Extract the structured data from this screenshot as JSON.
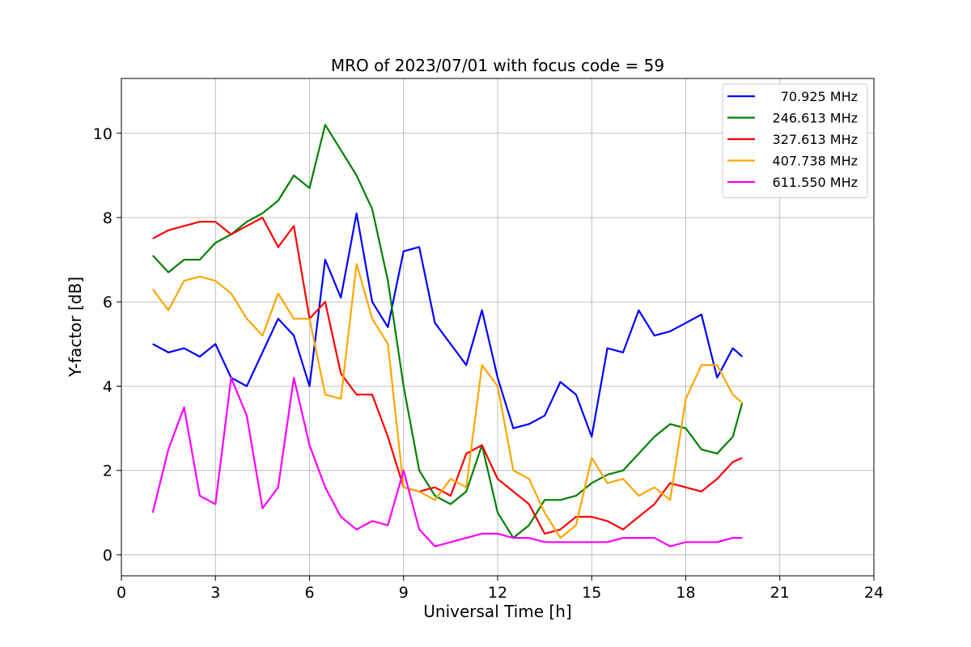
{
  "chart_data": {
    "type": "line",
    "title": "MRO of 2023/07/01 with focus code = 59",
    "xlabel": "Universal Time [h]",
    "ylabel": "Y-factor [dB]",
    "xlim": [
      0,
      24
    ],
    "ylim": [
      -0.5,
      11.3
    ],
    "xticks": [
      0,
      3,
      6,
      9,
      12,
      15,
      18,
      21,
      24
    ],
    "yticks": [
      0,
      2,
      4,
      6,
      8,
      10
    ],
    "grid": true,
    "legend_position": "top-right",
    "series": [
      {
        "name": "70.925 MHz",
        "color": "#0000ff",
        "x": [
          1.0,
          1.5,
          2.0,
          2.5,
          3.0,
          3.5,
          4.0,
          4.5,
          5.0,
          5.5,
          6.0,
          6.5,
          7.0,
          7.5,
          8.0,
          8.5,
          9.0,
          9.5,
          10.0,
          10.5,
          11.0,
          11.5,
          12.0,
          12.5,
          13.0,
          13.5,
          14.0,
          14.5,
          15.0,
          15.5,
          16.0,
          16.5,
          17.0,
          17.5,
          18.0,
          18.5,
          19.0,
          19.5,
          19.8
        ],
        "y": [
          5.0,
          4.8,
          4.9,
          4.7,
          5.0,
          4.2,
          4.0,
          4.8,
          5.6,
          5.2,
          4.0,
          7.0,
          6.1,
          8.1,
          6.0,
          5.4,
          7.2,
          7.3,
          5.5,
          5.0,
          4.5,
          5.8,
          4.2,
          3.0,
          3.1,
          3.3,
          4.1,
          3.8,
          2.8,
          4.9,
          4.8,
          5.8,
          5.2,
          5.3,
          5.5,
          5.7,
          4.2,
          4.9,
          4.7
        ]
      },
      {
        "name": "246.613 MHz",
        "color": "#008000",
        "x": [
          1.0,
          1.5,
          2.0,
          2.5,
          3.0,
          3.5,
          4.0,
          4.5,
          5.0,
          5.5,
          6.0,
          6.5,
          7.0,
          7.5,
          8.0,
          8.5,
          9.0,
          9.5,
          10.0,
          10.5,
          11.0,
          11.5,
          12.0,
          12.5,
          13.0,
          13.5,
          14.0,
          14.5,
          15.0,
          15.5,
          16.0,
          16.5,
          17.0,
          17.5,
          18.0,
          18.5,
          19.0,
          19.5,
          19.8
        ],
        "y": [
          7.1,
          6.7,
          7.0,
          7.0,
          7.4,
          7.6,
          7.9,
          8.1,
          8.4,
          9.0,
          8.7,
          10.2,
          9.6,
          9.0,
          8.2,
          6.5,
          4.0,
          2.0,
          1.4,
          1.2,
          1.5,
          2.6,
          1.0,
          0.4,
          0.7,
          1.3,
          1.3,
          1.4,
          1.7,
          1.9,
          2.0,
          2.4,
          2.8,
          3.1,
          3.0,
          2.5,
          2.4,
          2.8,
          3.6
        ]
      },
      {
        "name": "327.613 MHz",
        "color": "#ff0000",
        "x": [
          1.0,
          1.5,
          2.0,
          2.5,
          3.0,
          3.5,
          4.0,
          4.5,
          5.0,
          5.5,
          6.0,
          6.5,
          7.0,
          7.5,
          8.0,
          8.5,
          9.0,
          9.5,
          10.0,
          10.5,
          11.0,
          11.5,
          12.0,
          12.5,
          13.0,
          13.5,
          14.0,
          14.5,
          15.0,
          15.5,
          16.0,
          16.5,
          17.0,
          17.5,
          18.0,
          18.5,
          19.0,
          19.5,
          19.8
        ],
        "y": [
          7.5,
          7.7,
          7.8,
          7.9,
          7.9,
          7.6,
          7.8,
          8.0,
          7.3,
          7.8,
          5.6,
          6.0,
          4.3,
          3.8,
          3.8,
          2.8,
          1.6,
          1.5,
          1.6,
          1.4,
          2.4,
          2.6,
          1.8,
          1.5,
          1.2,
          0.5,
          0.6,
          0.9,
          0.9,
          0.8,
          0.6,
          0.9,
          1.2,
          1.7,
          1.6,
          1.5,
          1.8,
          2.2,
          2.3
        ]
      },
      {
        "name": "407.738 MHz",
        "color": "#ffa500",
        "x": [
          1.0,
          1.5,
          2.0,
          2.5,
          3.0,
          3.5,
          4.0,
          4.5,
          5.0,
          5.5,
          6.0,
          6.5,
          7.0,
          7.5,
          8.0,
          8.5,
          9.0,
          9.5,
          10.0,
          10.5,
          11.0,
          11.5,
          12.0,
          12.5,
          13.0,
          13.5,
          14.0,
          14.5,
          15.0,
          15.5,
          16.0,
          16.5,
          17.0,
          17.5,
          18.0,
          18.5,
          19.0,
          19.5,
          19.8
        ],
        "y": [
          6.3,
          5.8,
          6.5,
          6.6,
          6.5,
          6.2,
          5.6,
          5.2,
          6.2,
          5.6,
          5.6,
          3.8,
          3.7,
          6.9,
          5.6,
          5.0,
          1.6,
          1.5,
          1.3,
          1.8,
          1.6,
          4.5,
          4.0,
          2.0,
          1.8,
          1.0,
          0.4,
          0.7,
          2.3,
          1.7,
          1.8,
          1.4,
          1.6,
          1.3,
          3.7,
          4.5,
          4.5,
          3.8,
          3.6
        ]
      },
      {
        "name": "611.550 MHz",
        "color": "#ff00ff",
        "x": [
          1.0,
          1.5,
          2.0,
          2.5,
          3.0,
          3.5,
          4.0,
          4.5,
          5.0,
          5.5,
          6.0,
          6.5,
          7.0,
          7.5,
          8.0,
          8.5,
          9.0,
          9.5,
          10.0,
          10.5,
          11.0,
          11.5,
          12.0,
          12.5,
          13.0,
          13.5,
          14.0,
          14.5,
          15.0,
          15.5,
          16.0,
          16.5,
          17.0,
          17.5,
          18.0,
          18.5,
          19.0,
          19.5,
          19.8
        ],
        "y": [
          1.0,
          2.5,
          3.5,
          1.4,
          1.2,
          4.2,
          3.3,
          1.1,
          1.6,
          4.2,
          2.6,
          1.6,
          0.9,
          0.6,
          0.8,
          0.7,
          2.0,
          0.6,
          0.2,
          0.3,
          0.4,
          0.5,
          0.5,
          0.4,
          0.4,
          0.3,
          0.3,
          0.3,
          0.3,
          0.3,
          0.4,
          0.4,
          0.4,
          0.2,
          0.3,
          0.3,
          0.3,
          0.4,
          0.4
        ]
      }
    ]
  }
}
